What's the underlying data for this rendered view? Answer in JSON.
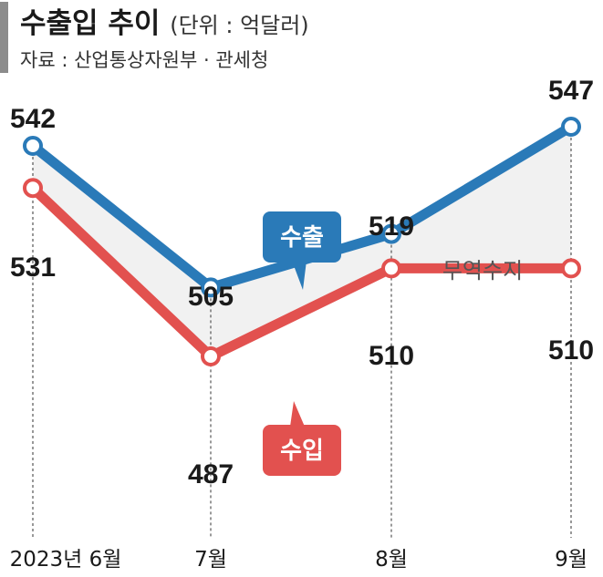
{
  "header": {
    "title": "수출입 추이",
    "unit": "(단위 : 억달러)",
    "source": "자료 : 산업통상자원부 · 관세청"
  },
  "colors": {
    "export": "#2a7ab8",
    "import": "#e2514f",
    "balance_fill": "#f1f1f1",
    "grid": "#555555"
  },
  "chart_data": {
    "type": "line",
    "categories": [
      "2023년 6월",
      "7월",
      "8월",
      "9월"
    ],
    "ylim": [
      470,
      560
    ],
    "series": [
      {
        "name": "수출",
        "values": [
          542,
          505,
          519,
          547
        ]
      },
      {
        "name": "수입",
        "values": [
          531,
          487,
          510,
          510
        ]
      }
    ],
    "annotations": {
      "balance_label": "무역수지"
    }
  }
}
